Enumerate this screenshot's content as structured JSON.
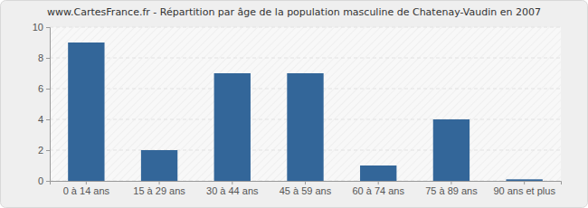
{
  "chart_data": {
    "type": "bar",
    "title": "www.CartesFrance.fr - Répartition par âge de la population masculine de Chatenay-Vaudin en 2007",
    "categories": [
      "0 à 14 ans",
      "15 à 29 ans",
      "30 à 44 ans",
      "45 à 59 ans",
      "60 à 74 ans",
      "75 à 89 ans",
      "90 ans et plus"
    ],
    "values": [
      9,
      2,
      7,
      7,
      1,
      4,
      0.1
    ],
    "color": "#336699",
    "ylim": [
      0,
      10
    ],
    "yticks": [
      0,
      2,
      4,
      6,
      8,
      10
    ],
    "grid": true
  }
}
